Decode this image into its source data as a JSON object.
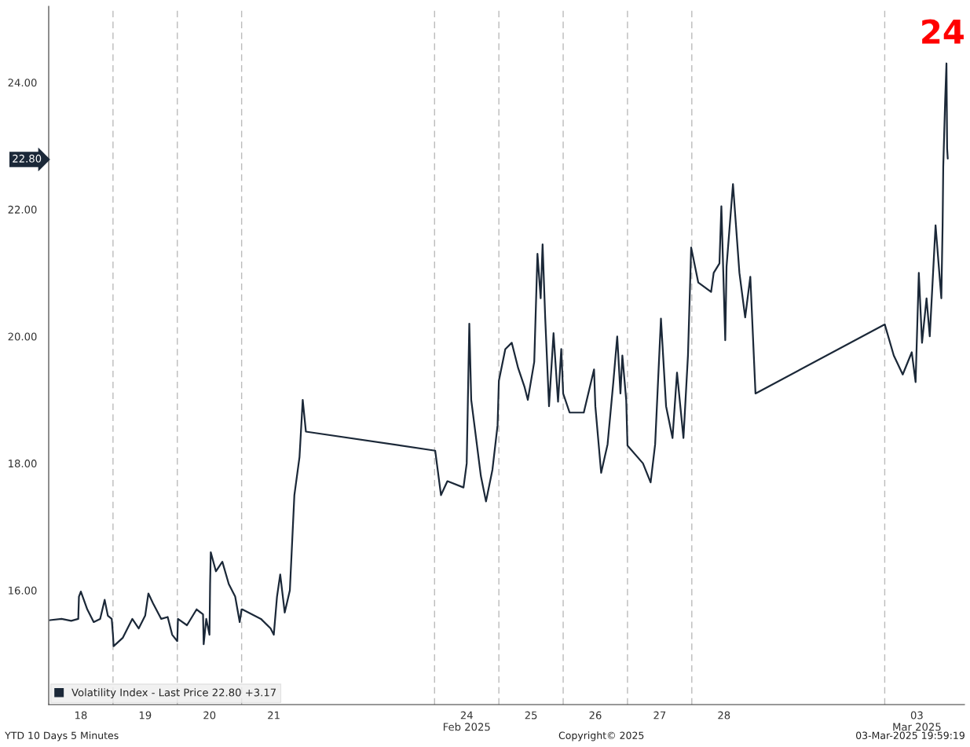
{
  "chart_data": {
    "type": "line",
    "xlim": [
      "2025-02-18T00:00",
      "2025-03-04T05:46"
    ],
    "ylim": [
      14.2,
      25.2
    ],
    "xticks": [
      {
        "value": "2025-02-18T12:00",
        "label": "18"
      },
      {
        "value": "2025-02-19T12:00",
        "label": "19"
      },
      {
        "value": "2025-02-20T12:00",
        "label": "20"
      },
      {
        "value": "2025-02-21T12:00",
        "label": "21"
      },
      {
        "value": "2025-02-24T12:00",
        "label": "24\nFeb 2025"
      },
      {
        "value": "2025-02-25T12:00",
        "label": "25"
      },
      {
        "value": "2025-02-26T12:00",
        "label": "26"
      },
      {
        "value": "2025-02-27T12:00",
        "label": "27"
      },
      {
        "value": "2025-02-28T12:00",
        "label": "28"
      },
      {
        "value": "2025-03-03T12:00",
        "label": "03\nMar 2025"
      }
    ],
    "yticks": [
      {
        "value": 16,
        "label": "16.00"
      },
      {
        "value": 18,
        "label": "18.00"
      },
      {
        "value": 20,
        "label": "20.00"
      },
      {
        "value": 22,
        "label": "22.00"
      },
      {
        "value": 24,
        "label": "24.00"
      }
    ],
    "grid": false,
    "legend": "bottom left",
    "ref_lines": [
      {
        "axis": "x",
        "value": "2025-02-19T00:00",
        "line_style": "dashed",
        "color": "#bbbbbb"
      },
      {
        "axis": "x",
        "value": "2025-02-20T00:00",
        "line_style": "dashed",
        "color": "#bbbbbb"
      },
      {
        "axis": "x",
        "value": "2025-02-21T00:00",
        "line_style": "dashed",
        "color": "#bbbbbb"
      },
      {
        "axis": "x",
        "value": "2025-02-24T00:00",
        "line_style": "dashed",
        "color": "#bbbbbb"
      },
      {
        "axis": "x",
        "value": "2025-02-25T00:00",
        "line_style": "dashed",
        "color": "#bbbbbb"
      },
      {
        "axis": "x",
        "value": "2025-02-26T00:00",
        "line_style": "dashed",
        "color": "#bbbbbb"
      },
      {
        "axis": "x",
        "value": "2025-02-27T00:00",
        "line_style": "dashed",
        "color": "#bbbbbb"
      },
      {
        "axis": "x",
        "value": "2025-02-28T00:00",
        "line_style": "dashed",
        "color": "#bbbbbb"
      },
      {
        "axis": "x",
        "value": "2025-03-03T00:00",
        "line_style": "dashed",
        "color": "#bbbbbb"
      }
    ],
    "annotations": [
      "24",
      "22.80",
      "YTD 10 Days 5 Minutes",
      "Copyright© 2025",
      "03-Mar-2025 19:59:19"
    ],
    "series": [
      {
        "name": "Volatility Index - Last Price 22.80 +3.17",
        "color": "#1b2838",
        "x": [
          "2025-02-18T00:29",
          "2025-02-18T04:48",
          "2025-02-18T08:24",
          "2025-02-18T11:02",
          "2025-02-18T11:17",
          "2025-02-18T12:00",
          "2025-02-18T14:24",
          "2025-02-18T16:48",
          "2025-02-18T19:12",
          "2025-02-18T20:53",
          "2025-02-18T22:05",
          "2025-02-18T23:31",
          "2025-02-18T23:59",
          "2025-02-19T00:14",
          "2025-02-19T03:36",
          "2025-02-19T07:12",
          "2025-02-19T09:36",
          "2025-02-19T12:00",
          "2025-02-19T13:12",
          "2025-02-19T14:53",
          "2025-02-19T18:00",
          "2025-02-19T20:24",
          "2025-02-19T22:05",
          "2025-02-19T23:59",
          "2025-02-20T00:14",
          "2025-02-20T03:36",
          "2025-02-20T07:12",
          "2025-02-20T09:36",
          "2025-02-20T09:50",
          "2025-02-20T10:48",
          "2025-02-20T12:00",
          "2025-02-20T12:14",
          "2025-02-20T12:29",
          "2025-02-20T14:24",
          "2025-02-20T16:48",
          "2025-02-20T19:12",
          "2025-02-20T21:36",
          "2025-02-20T23:17",
          "2025-02-20T23:59",
          "2025-02-21T00:14",
          "2025-02-21T07:12",
          "2025-02-21T10:48",
          "2025-02-21T12:00",
          "2025-02-21T13:12",
          "2025-02-21T14:24",
          "2025-02-21T16:05",
          "2025-02-21T18:00",
          "2025-02-21T19:41",
          "2025-02-21T21:36",
          "2025-02-21T22:48",
          "2025-02-21T23:59",
          "2025-02-24T00:14",
          "2025-02-24T02:24",
          "2025-02-24T04:48",
          "2025-02-24T10:48",
          "2025-02-24T12:00",
          "2025-02-24T12:58",
          "2025-02-24T13:41",
          "2025-02-24T14:53",
          "2025-02-24T17:17",
          "2025-02-24T19:12",
          "2025-02-24T21:36",
          "2025-02-24T23:31",
          "2025-02-25T00:00",
          "2025-02-25T02:24",
          "2025-02-25T04:48",
          "2025-02-25T07:12",
          "2025-02-25T09:36",
          "2025-02-25T10:48",
          "2025-02-25T13:12",
          "2025-02-25T14:24",
          "2025-02-25T15:36",
          "2025-02-25T16:19",
          "2025-02-25T17:17",
          "2025-02-25T18:43",
          "2025-02-25T20:24",
          "2025-02-25T22:05",
          "2025-02-25T23:17",
          "2025-02-26T00:00",
          "2025-02-26T02:24",
          "2025-02-26T07:41",
          "2025-02-26T11:31",
          "2025-02-26T12:00",
          "2025-02-26T14:10",
          "2025-02-26T16:34",
          "2025-02-26T18:43",
          "2025-02-26T20:10",
          "2025-02-26T21:22",
          "2025-02-26T22:05",
          "2025-02-26T23:31",
          "2025-02-27T00:00",
          "2025-02-27T05:46",
          "2025-02-27T08:38",
          "2025-02-27T10:19",
          "2025-02-27T12:29",
          "2025-02-27T14:24",
          "2025-02-27T16:48",
          "2025-02-27T18:29",
          "2025-02-27T20:53",
          "2025-02-27T22:34",
          "2025-02-27T23:46",
          "2025-02-28T02:24",
          "2025-02-28T07:12",
          "2025-02-28T08:10",
          "2025-02-28T10:19",
          "2025-02-28T11:02",
          "2025-02-28T12:29",
          "2025-02-28T12:58",
          "2025-02-28T15:22",
          "2025-02-28T17:46",
          "2025-02-28T19:55",
          "2025-02-28T21:50",
          "2025-02-28T23:46",
          "2025-03-03T00:00",
          "2025-03-03T03:22",
          "2025-03-03T06:43",
          "2025-03-03T10:05",
          "2025-03-03T11:31",
          "2025-03-03T12:43",
          "2025-03-03T13:55",
          "2025-03-03T15:36",
          "2025-03-03T16:48",
          "2025-03-03T18:58",
          "2025-03-03T21:07",
          "2025-03-03T21:36",
          "2025-03-03T21:50",
          "2025-03-03T22:34",
          "2025-03-03T23:02",
          "2025-03-03T23:17",
          "2025-03-03T23:31"
        ],
        "values": [
          15.53,
          15.55,
          15.52,
          15.55,
          15.9,
          15.98,
          15.7,
          15.5,
          15.55,
          15.85,
          15.6,
          15.55,
          15.3,
          15.12,
          15.25,
          15.55,
          15.4,
          15.6,
          15.95,
          15.8,
          15.55,
          15.58,
          15.3,
          15.2,
          15.55,
          15.45,
          15.7,
          15.62,
          15.15,
          15.55,
          15.3,
          16.1,
          16.6,
          16.3,
          16.45,
          16.1,
          15.9,
          15.5,
          15.7,
          15.7,
          15.55,
          15.4,
          15.3,
          15.9,
          16.25,
          15.65,
          16.0,
          17.5,
          18.1,
          19.0,
          18.5,
          18.2,
          17.5,
          17.72,
          17.62,
          18.0,
          20.2,
          19.0,
          18.6,
          17.8,
          17.4,
          17.9,
          18.6,
          19.3,
          19.8,
          19.9,
          19.5,
          19.2,
          19.0,
          19.6,
          21.3,
          20.6,
          21.45,
          20.3,
          18.9,
          20.05,
          18.97,
          19.8,
          19.1,
          18.8,
          18.8,
          19.48,
          18.9,
          17.85,
          18.3,
          19.28,
          20.0,
          19.1,
          19.7,
          19.0,
          18.28,
          18.0,
          17.7,
          18.3,
          20.28,
          18.9,
          18.4,
          19.43,
          18.4,
          19.7,
          21.4,
          20.85,
          20.7,
          21.0,
          21.15,
          22.05,
          19.94,
          21.1,
          22.4,
          21.0,
          20.3,
          20.94,
          19.1,
          20.19,
          19.7,
          19.4,
          19.75,
          19.28,
          21.0,
          19.9,
          20.6,
          20.0,
          21.75,
          20.6,
          21.76,
          22.67,
          23.74,
          24.3,
          22.96,
          22.8
        ]
      }
    ]
  }
}
